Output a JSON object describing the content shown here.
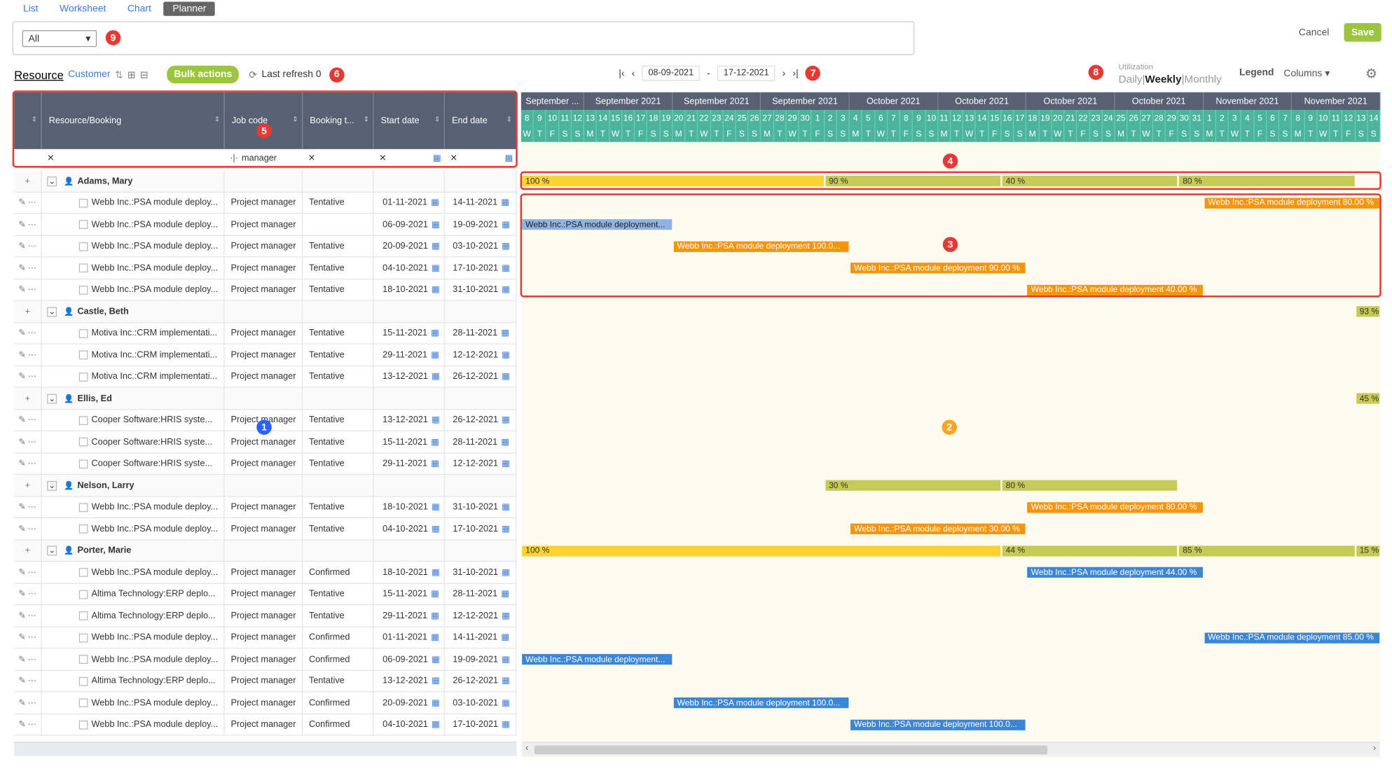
{
  "tabs": [
    "List",
    "Worksheet",
    "Chart",
    "Planner"
  ],
  "filter": {
    "value": "All"
  },
  "actions": {
    "cancel": "Cancel",
    "save": "Save"
  },
  "toolbar": {
    "title": "Resource",
    "subtitle": "Customer",
    "bulk": "Bulk actions",
    "refresh": "Last refresh 0"
  },
  "dates": {
    "start": "08-09-2021",
    "end": "17-12-2021",
    "sep": "-"
  },
  "util": {
    "label": "Utilization",
    "daily": "Daily",
    "weekly": "Weekly",
    "monthly": "Monthly"
  },
  "legend": "Legend",
  "columns_label": "Columns",
  "headers": [
    "Resource/Booking",
    "Job code",
    "Booking t...",
    "Start date",
    "End date"
  ],
  "filter_row": {
    "job": "manager"
  },
  "months": [
    "September ...",
    "September 2021",
    "September 2021",
    "September 2021",
    "October 2021",
    "October 2021",
    "October 2021",
    "October 2021",
    "November 2021",
    "November 2021"
  ],
  "days": [
    "8",
    "9",
    "10",
    "11",
    "12",
    "13",
    "14",
    "15",
    "16",
    "17",
    "18",
    "19",
    "20",
    "21",
    "22",
    "23",
    "24",
    "25",
    "26",
    "27",
    "28",
    "29",
    "30",
    "1",
    "2",
    "3",
    "4",
    "5",
    "6",
    "7",
    "8",
    "9",
    "10",
    "11",
    "12",
    "13",
    "14",
    "15",
    "16",
    "17",
    "18",
    "19",
    "20",
    "21",
    "22",
    "23",
    "24",
    "25",
    "26",
    "27",
    "28",
    "29",
    "30",
    "31",
    "1",
    "2",
    "3",
    "4",
    "5",
    "6",
    "7",
    "8",
    "9",
    "10",
    "11",
    "12",
    "13",
    "14"
  ],
  "weekdays": [
    "W",
    "T",
    "F",
    "S",
    "S",
    "M",
    "T",
    "W",
    "T",
    "F",
    "S",
    "S",
    "M",
    "T",
    "W",
    "T",
    "F",
    "S",
    "S",
    "M",
    "T",
    "W",
    "T",
    "F",
    "S",
    "S",
    "M",
    "T",
    "W",
    "T",
    "F",
    "S",
    "S",
    "M",
    "T",
    "W",
    "T",
    "F",
    "S",
    "S",
    "M",
    "T",
    "W",
    "T",
    "F",
    "S",
    "S",
    "M",
    "T",
    "W",
    "T",
    "F",
    "S",
    "S",
    "M",
    "T",
    "W",
    "T",
    "F",
    "S",
    "S",
    "M",
    "T",
    "W",
    "T",
    "F",
    "S",
    "S"
  ],
  "rows": [
    {
      "type": "r",
      "name": "Adams, Mary"
    },
    {
      "type": "b",
      "name": "Webb Inc.:PSA module deploy...",
      "job": "Project manager",
      "bt": "Tentative",
      "s": "01-11-2021",
      "e": "14-11-2021"
    },
    {
      "type": "b",
      "name": "Webb Inc.:PSA module deploy...",
      "job": "Project manager",
      "bt": "",
      "s": "06-09-2021",
      "e": "19-09-2021"
    },
    {
      "type": "b",
      "name": "Webb Inc.:PSA module deploy...",
      "job": "Project manager",
      "bt": "Tentative",
      "s": "20-09-2021",
      "e": "03-10-2021"
    },
    {
      "type": "b",
      "name": "Webb Inc.:PSA module deploy...",
      "job": "Project manager",
      "bt": "Tentative",
      "s": "04-10-2021",
      "e": "17-10-2021"
    },
    {
      "type": "b",
      "name": "Webb Inc.:PSA module deploy...",
      "job": "Project manager",
      "bt": "Tentative",
      "s": "18-10-2021",
      "e": "31-10-2021"
    },
    {
      "type": "r",
      "name": "Castle, Beth"
    },
    {
      "type": "b",
      "name": "Motiva Inc.:CRM implementati...",
      "job": "Project manager",
      "bt": "Tentative",
      "s": "15-11-2021",
      "e": "28-11-2021"
    },
    {
      "type": "b",
      "name": "Motiva Inc.:CRM implementati...",
      "job": "Project manager",
      "bt": "Tentative",
      "s": "29-11-2021",
      "e": "12-12-2021"
    },
    {
      "type": "b",
      "name": "Motiva Inc.:CRM implementati...",
      "job": "Project manager",
      "bt": "Tentative",
      "s": "13-12-2021",
      "e": "26-12-2021"
    },
    {
      "type": "r",
      "name": "Ellis, Ed"
    },
    {
      "type": "b",
      "name": "Cooper Software:HRIS syste...",
      "job": "Project manager",
      "bt": "Tentative",
      "s": "13-12-2021",
      "e": "26-12-2021"
    },
    {
      "type": "b",
      "name": "Cooper Software:HRIS syste...",
      "job": "Project manager",
      "bt": "Tentative",
      "s": "15-11-2021",
      "e": "28-11-2021"
    },
    {
      "type": "b",
      "name": "Cooper Software:HRIS syste...",
      "job": "Project manager",
      "bt": "Tentative",
      "s": "29-11-2021",
      "e": "12-12-2021"
    },
    {
      "type": "r",
      "name": "Nelson, Larry"
    },
    {
      "type": "b",
      "name": "Webb Inc.:PSA module deploy...",
      "job": "Project manager",
      "bt": "Tentative",
      "s": "18-10-2021",
      "e": "31-10-2021"
    },
    {
      "type": "b",
      "name": "Webb Inc.:PSA module deploy...",
      "job": "Project manager",
      "bt": "Tentative",
      "s": "04-10-2021",
      "e": "17-10-2021"
    },
    {
      "type": "r",
      "name": "Porter, Marie"
    },
    {
      "type": "b",
      "name": "Webb Inc.:PSA module deploy...",
      "job": "Project manager",
      "bt": "Confirmed",
      "s": "18-10-2021",
      "e": "31-10-2021"
    },
    {
      "type": "b",
      "name": "Altima Technology:ERP deplo...",
      "job": "Project manager",
      "bt": "Tentative",
      "s": "15-11-2021",
      "e": "28-11-2021"
    },
    {
      "type": "b",
      "name": "Altima Technology:ERP deplo...",
      "job": "Project manager",
      "bt": "Tentative",
      "s": "29-11-2021",
      "e": "12-12-2021"
    },
    {
      "type": "b",
      "name": "Webb Inc.:PSA module deploy...",
      "job": "Project manager",
      "bt": "Confirmed",
      "s": "01-11-2021",
      "e": "14-11-2021"
    },
    {
      "type": "b",
      "name": "Webb Inc.:PSA module deploy...",
      "job": "Project manager",
      "bt": "Confirmed",
      "s": "06-09-2021",
      "e": "19-09-2021"
    },
    {
      "type": "b",
      "name": "Altima Technology:ERP deplo...",
      "job": "Project manager",
      "bt": "Tentative",
      "s": "13-12-2021",
      "e": "26-12-2021"
    },
    {
      "type": "b",
      "name": "Webb Inc.:PSA module deploy...",
      "job": "Project manager",
      "bt": "Confirmed",
      "s": "20-09-2021",
      "e": "03-10-2021"
    },
    {
      "type": "b",
      "name": "Webb Inc.:PSA module deploy...",
      "job": "Project manager",
      "bt": "Confirmed",
      "s": "04-10-2021",
      "e": "17-10-2021"
    }
  ],
  "bars": [
    {
      "row": 0,
      "from": 0,
      "to": 24,
      "c": "uy",
      "t": "100 %"
    },
    {
      "row": 0,
      "from": 24,
      "to": 38,
      "c": "u",
      "t": "90 %"
    },
    {
      "row": 0,
      "from": 38,
      "to": 52,
      "c": "u",
      "t": "40 %"
    },
    {
      "row": 0,
      "from": 52,
      "to": 66,
      "c": "u",
      "t": "80 %"
    },
    {
      "row": 1,
      "from": 54,
      "to": 68,
      "c": "o",
      "t": "Webb Inc.:PSA module deployment 80.00 %"
    },
    {
      "row": 2,
      "from": 0,
      "to": 12,
      "c": "lb",
      "t": "Webb Inc.:PSA module deployment..."
    },
    {
      "row": 3,
      "from": 12,
      "to": 26,
      "c": "o",
      "t": "Webb Inc.:PSA module deployment 100.0..."
    },
    {
      "row": 4,
      "from": 26,
      "to": 40,
      "c": "o",
      "t": "Webb Inc.:PSA module deployment 90.00 %"
    },
    {
      "row": 5,
      "from": 40,
      "to": 54,
      "c": "o",
      "t": "Webb Inc.:PSA module deployment 40.00 %"
    },
    {
      "row": 6,
      "from": 66,
      "to": 68,
      "c": "u",
      "t": "93 %"
    },
    {
      "row": 10,
      "from": 66,
      "to": 68,
      "c": "u",
      "t": "45 %"
    },
    {
      "row": 14,
      "from": 24,
      "to": 38,
      "c": "u",
      "t": "30 %"
    },
    {
      "row": 14,
      "from": 38,
      "to": 52,
      "c": "u",
      "t": "80 %"
    },
    {
      "row": 15,
      "from": 40,
      "to": 54,
      "c": "o",
      "t": "Webb Inc.:PSA module deployment 80.00 %"
    },
    {
      "row": 16,
      "from": 26,
      "to": 40,
      "c": "o",
      "t": "Webb Inc.:PSA module deployment 30.00 %"
    },
    {
      "row": 17,
      "from": 0,
      "to": 38,
      "c": "uy",
      "t": "100 %"
    },
    {
      "row": 17,
      "from": 38,
      "to": 52,
      "c": "u",
      "t": "44 %"
    },
    {
      "row": 17,
      "from": 52,
      "to": 66,
      "c": "u",
      "t": "85 %"
    },
    {
      "row": 17,
      "from": 66,
      "to": 68,
      "c": "u",
      "t": "15 %"
    },
    {
      "row": 18,
      "from": 40,
      "to": 54,
      "c": "b",
      "t": "Webb Inc.:PSA module deployment 44.00 %"
    },
    {
      "row": 21,
      "from": 54,
      "to": 68,
      "c": "b",
      "t": "Webb Inc.:PSA module deployment 85.00 %"
    },
    {
      "row": 22,
      "from": 0,
      "to": 12,
      "c": "b",
      "t": "Webb Inc.:PSA module deployment..."
    },
    {
      "row": 24,
      "from": 12,
      "to": 26,
      "c": "b",
      "t": "Webb Inc.:PSA module deployment 100.0..."
    },
    {
      "row": 25,
      "from": 26,
      "to": 40,
      "c": "b",
      "t": "Webb Inc.:PSA module deployment 100.0..."
    }
  ],
  "markers": [
    "1",
    "2",
    "3",
    "4",
    "5",
    "6",
    "7",
    "8",
    "9"
  ]
}
